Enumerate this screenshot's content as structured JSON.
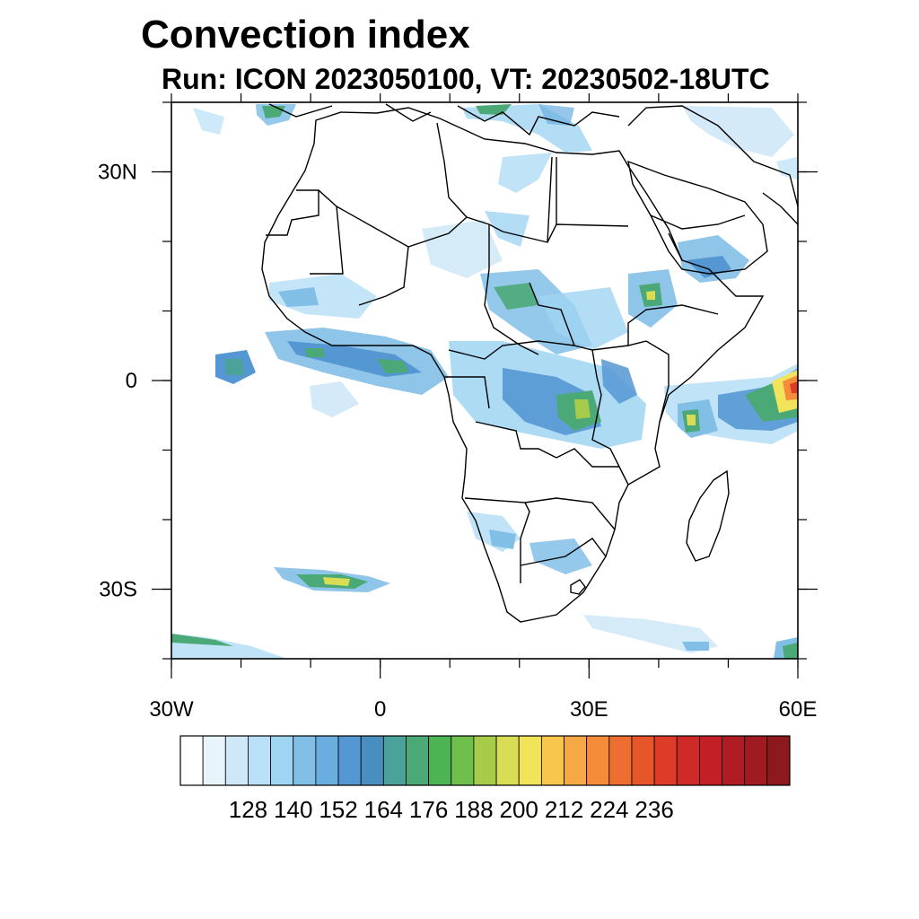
{
  "title": "Convection index",
  "subtitle": "Run: ICON 2023050100,  VT: 20230502-18UTC",
  "map": {
    "region": "Africa",
    "lon_range": [
      -30,
      60
    ],
    "lat_range": [
      -40,
      40
    ],
    "lat_ticks": [
      {
        "value": 30,
        "label": "30N"
      },
      {
        "value": 0,
        "label": "0"
      },
      {
        "value": -30,
        "label": "30S"
      }
    ],
    "lon_ticks": [
      {
        "value": -30,
        "label": "30W"
      },
      {
        "value": 0,
        "label": "0"
      },
      {
        "value": 30,
        "label": "30E"
      },
      {
        "value": 60,
        "label": "60E"
      }
    ]
  },
  "colorbar": {
    "colors": [
      "#ffffff",
      "#e8f4fc",
      "#cfe8f7",
      "#b9e0f6",
      "#9fd5f2",
      "#82bfe7",
      "#6aaee0",
      "#5597d3",
      "#4a8ec0",
      "#4aa29a",
      "#4ba978",
      "#4cb453",
      "#6fbf4c",
      "#a7cc4c",
      "#d9dc55",
      "#f1e45a",
      "#f8c64c",
      "#f6a844",
      "#f48c3b",
      "#ee6e32",
      "#e7552b",
      "#dd3d28",
      "#cf2a27",
      "#c22026",
      "#b01c24",
      "#a01a21",
      "#8c1a1c"
    ],
    "labels": [
      "128",
      "140",
      "152",
      "164",
      "176",
      "188",
      "200",
      "212",
      "224",
      "236"
    ]
  }
}
